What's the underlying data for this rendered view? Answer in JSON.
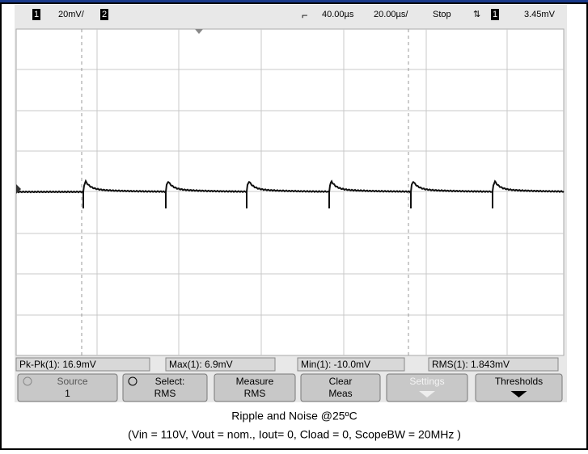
{
  "status_bar": {
    "channel_1": "1",
    "scale_1": "20mV/",
    "channel_2": "2",
    "delay": "40.00µs",
    "timebase": "20.00µs/",
    "run_state": "Stop",
    "trigger_symbol": "⇅",
    "trigger_channel": "1",
    "trigger_level": "3.45mV"
  },
  "measurements": [
    "Pk-Pk(1): 16.9mV",
    "Max(1): 6.9mV",
    "Min(1): -10.0mV",
    "RMS(1): 1.843mV"
  ],
  "softkeys": [
    {
      "line1": "Source",
      "line2": "1"
    },
    {
      "line1": "Select:",
      "line2": "RMS"
    },
    {
      "line1": "Measure",
      "line2": "RMS"
    },
    {
      "line1": "Clear",
      "line2": "Meas"
    },
    {
      "line1": "Settings",
      "line2": null
    },
    {
      "line1": "Thresholds",
      "line2": null
    }
  ],
  "caption": {
    "title": "Ripple and Noise @25ºC",
    "conditions": "(Vin = 110V, Vout = nom., Iout= 0, Cload = 0, ScopeBW = 20MHz )"
  }
}
